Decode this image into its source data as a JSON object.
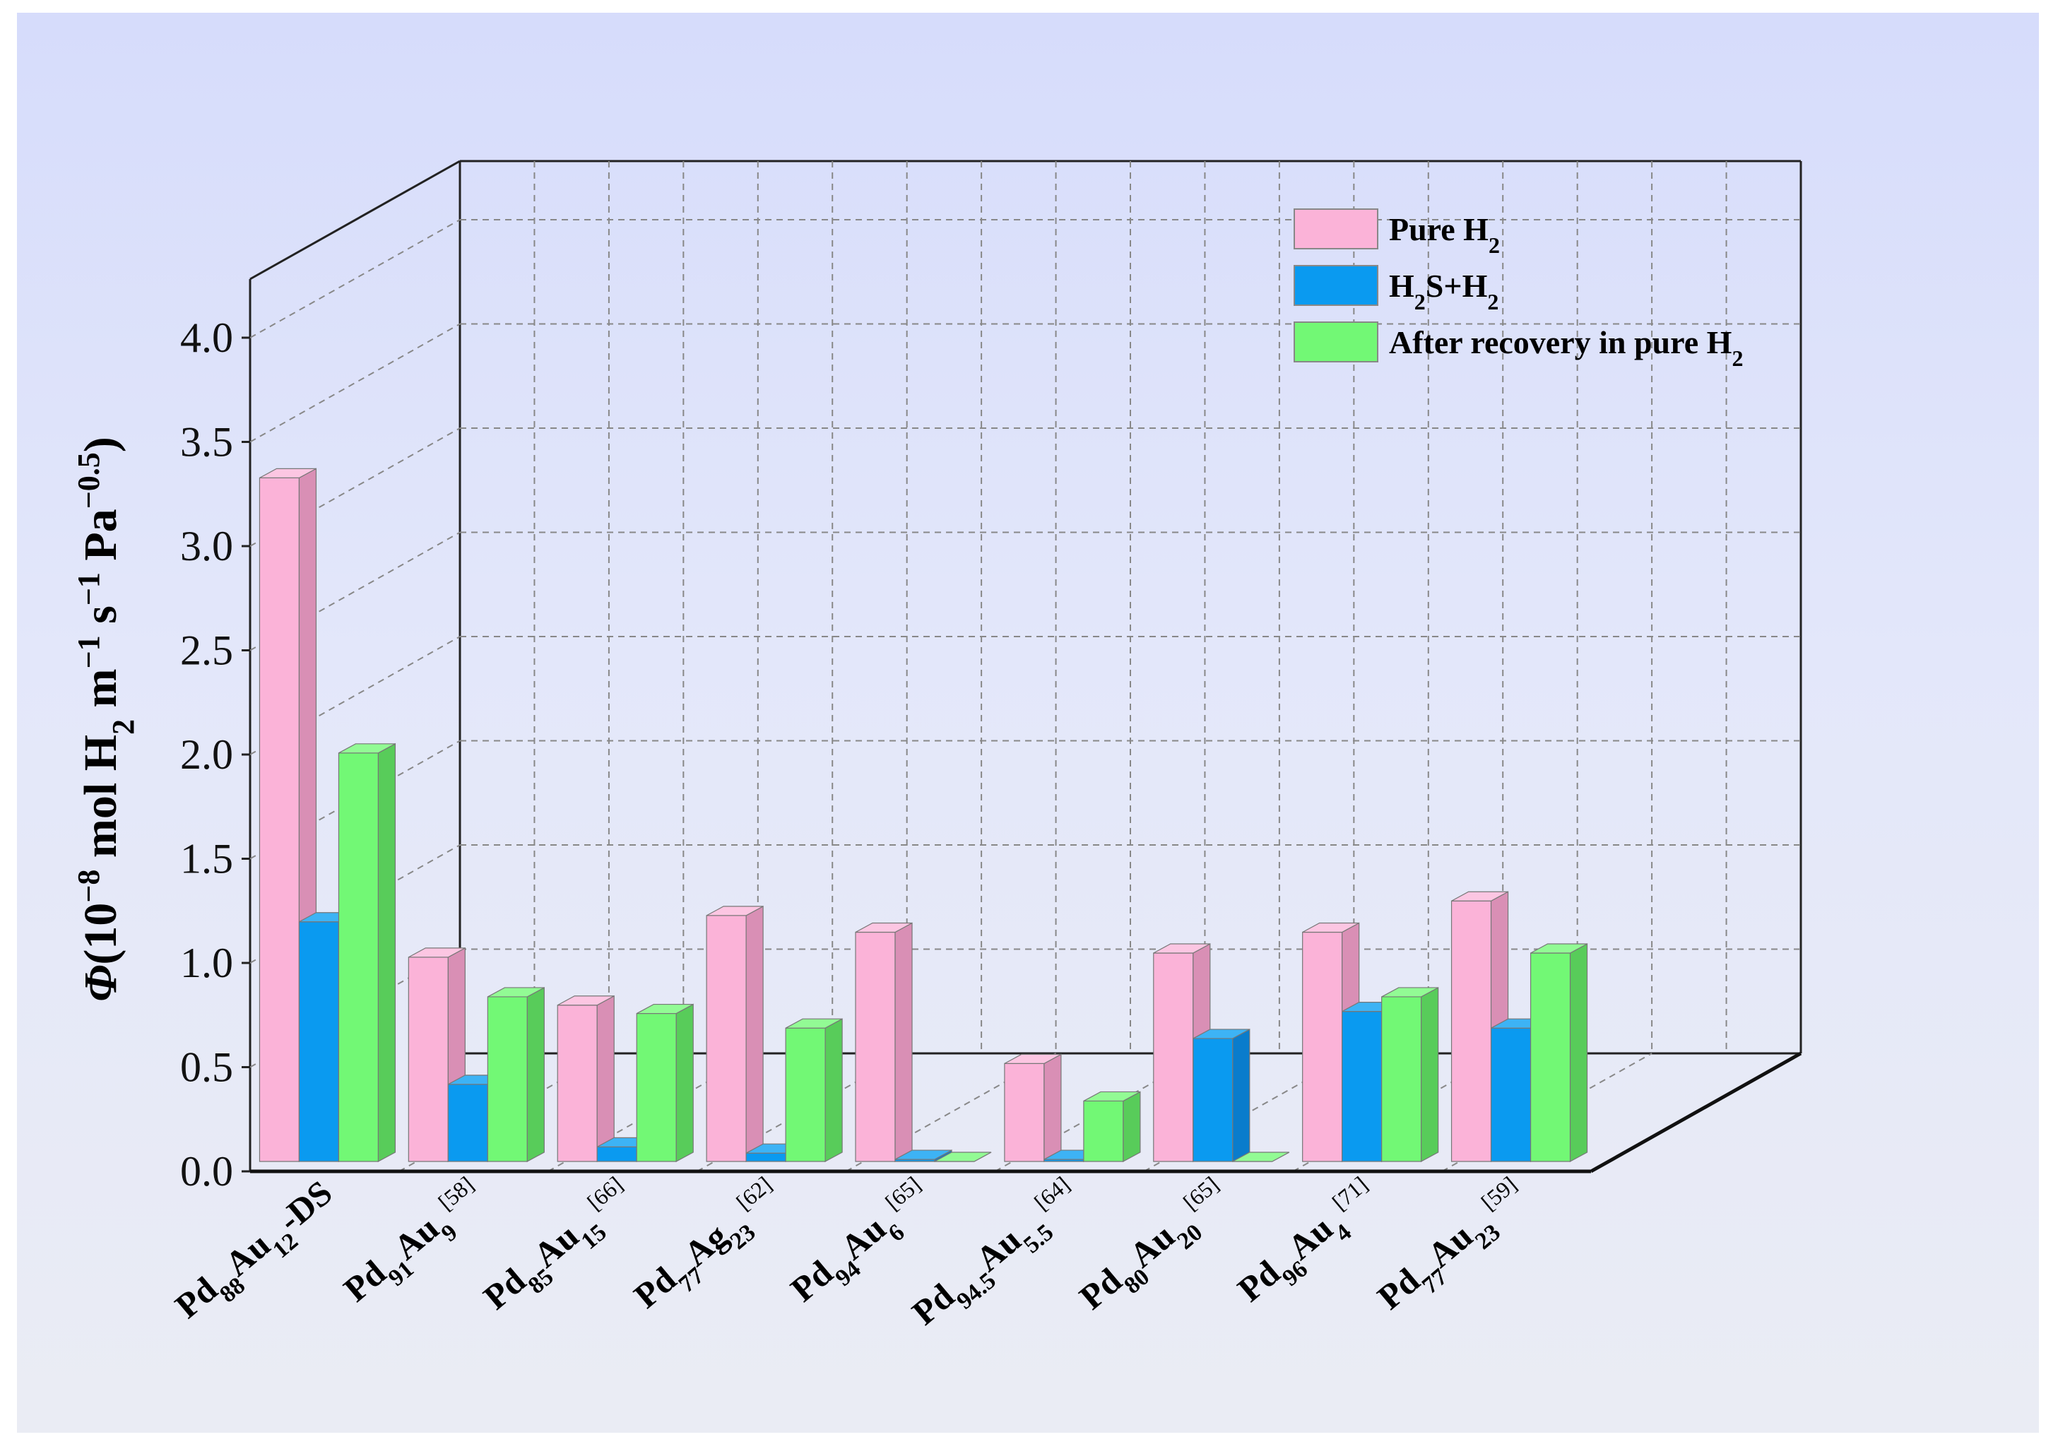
{
  "chart_data": {
    "type": "bar",
    "subtype": "3d-clustered",
    "ylabel": "Φ(10⁻⁸ mol H₂ m⁻¹ s⁻¹ Pa⁻⁰·⁵)",
    "ylabel_parts": {
      "symbol": "Φ",
      "a": "(10",
      "a_sup": "−8",
      "b": " mol H",
      "b_sub": "2",
      "c": " m",
      "c_sup": "−1",
      "d": " s",
      "d_sup": "−1",
      "e": " Pa",
      "e_sup": "−0.5",
      "f": ")"
    },
    "ylim": [
      0,
      4.0
    ],
    "yticks": [
      "0.0",
      "0.5",
      "1.0",
      "1.5",
      "2.0",
      "2.5",
      "3.0",
      "3.5",
      "4.0"
    ],
    "grid": true,
    "legend_position": "top-right",
    "categories": [
      "Pd88Au12-DS",
      "Pd91Au9[58]",
      "Pd85Au15[66]",
      "Pd77Ag23[62]",
      "Pd94Au6[65]",
      "Pd94.5Au5.5[64]",
      "Pd80Au20[65]",
      "Pd96Au4[71]",
      "Pd77Au23[59]"
    ],
    "category_labels": [
      {
        "p1": "Pd",
        "s1": "88",
        "p2": "Au",
        "s2": "12",
        "tail": "-DS",
        "ref": ""
      },
      {
        "p1": "Pd",
        "s1": "91",
        "p2": "Au",
        "s2": "9",
        "tail": "",
        "ref": "[58]"
      },
      {
        "p1": "Pd",
        "s1": "85",
        "p2": "Au",
        "s2": "15",
        "tail": "",
        "ref": "[66]"
      },
      {
        "p1": "Pd",
        "s1": "77",
        "p2": "Ag",
        "s2": "23",
        "tail": "",
        "ref": "[62]"
      },
      {
        "p1": "Pd",
        "s1": "94",
        "p2": "Au",
        "s2": "6",
        "tail": "",
        "ref": "[65]"
      },
      {
        "p1": "Pd",
        "s1": "94.5",
        "p2": "Au",
        "s2": "5.5",
        "tail": "",
        "ref": "[64]"
      },
      {
        "p1": "Pd",
        "s1": "80",
        "p2": "Au",
        "s2": "20",
        "tail": "",
        "ref": "[65]"
      },
      {
        "p1": "Pd",
        "s1": "96",
        "p2": "Au",
        "s2": "4",
        "tail": "",
        "ref": "[71]"
      },
      {
        "p1": "Pd",
        "s1": "77",
        "p2": "Au",
        "s2": "23",
        "tail": "",
        "ref": "[59]"
      }
    ],
    "series": [
      {
        "name": "Pure H2",
        "legend": {
          "a": "Pure H",
          "a_sub": "2",
          "b": ""
        },
        "color": "#fbb3d8",
        "side": "#d98fb5",
        "top": "#fcc6e2",
        "values": [
          3.28,
          0.98,
          0.75,
          1.18,
          1.1,
          0.47,
          1.0,
          1.1,
          1.25
        ]
      },
      {
        "name": "H2S+H2",
        "legend": {
          "a": "H",
          "a_sub": "2",
          "b": "S+H",
          "b_sub": "2"
        },
        "color": "#0a9af0",
        "side": "#0a7ccc",
        "top": "#3db3f5",
        "values": [
          1.15,
          0.37,
          0.07,
          0.04,
          0.01,
          0.01,
          0.59,
          0.72,
          0.64
        ]
      },
      {
        "name": "After recovery in pure H2",
        "legend": {
          "a": "After recovery in pure H",
          "a_sub": "2",
          "b": ""
        },
        "color": "#72f875",
        "side": "#58cc5a",
        "top": "#92fb94",
        "values": [
          1.96,
          0.79,
          0.71,
          0.64,
          0.0,
          0.29,
          0.0,
          0.79,
          1.0
        ]
      }
    ]
  }
}
